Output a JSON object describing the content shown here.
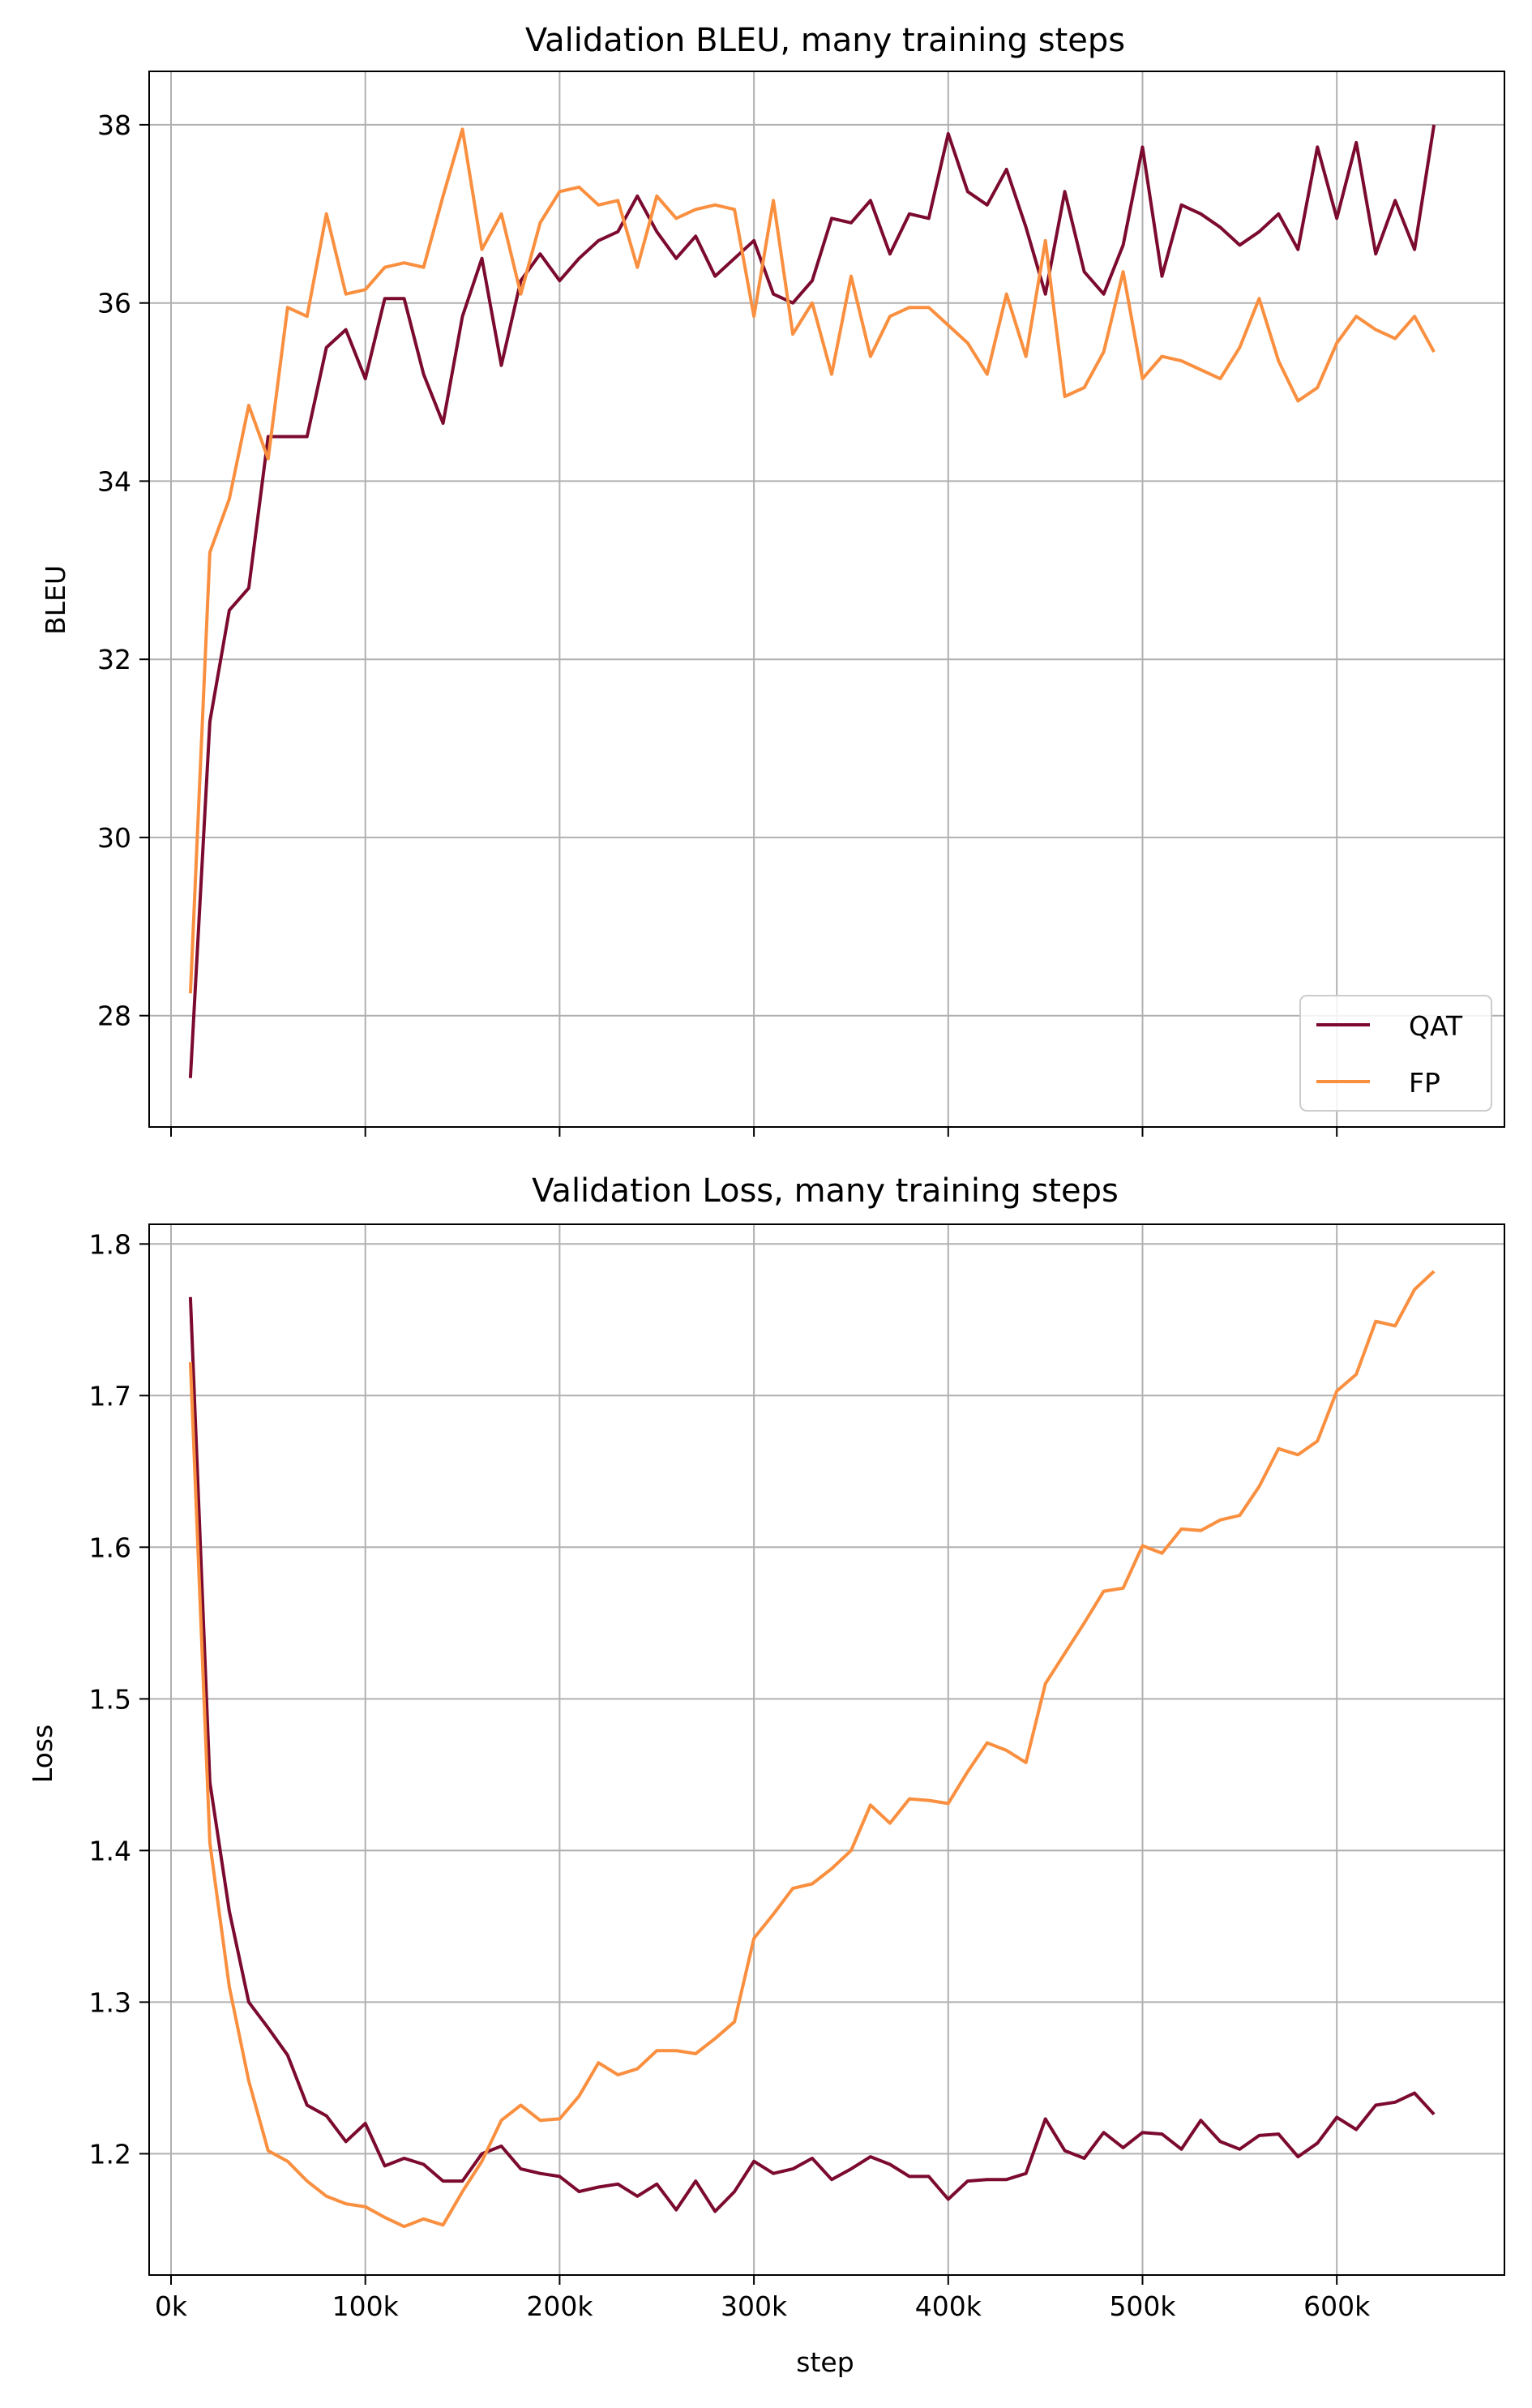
{
  "chart_data": [
    {
      "type": "line",
      "title": "Validation BLEU, many training steps",
      "xlabel": "",
      "ylabel": "BLEU",
      "xlim": [
        -11250,
        686250
      ],
      "ylim": [
        26.75,
        38.6
      ],
      "xticks": [
        0,
        100000,
        200000,
        300000,
        400000,
        500000,
        600000
      ],
      "xtick_labels": [
        "0k",
        "100k",
        "200k",
        "300k",
        "400k",
        "500k",
        "600k"
      ],
      "show_xtick_labels": false,
      "yticks": [
        28,
        30,
        32,
        34,
        36,
        38
      ],
      "ytick_labels": [
        "28",
        "30",
        "32",
        "34",
        "36",
        "38"
      ],
      "grid": true,
      "legend": "lower-right",
      "series": [
        {
          "name": "QAT",
          "color": "#7b0a2e",
          "x": [
            10000,
            20000,
            30000,
            40000,
            50000,
            60000,
            70000,
            80000,
            90000,
            100000,
            110000,
            120000,
            130000,
            140000,
            150000,
            160000,
            170000,
            180000,
            190000,
            200000,
            210000,
            220000,
            230000,
            240000,
            250000,
            260000,
            270000,
            280000,
            290000,
            300000,
            310000,
            320000,
            330000,
            340000,
            350000,
            360000,
            370000,
            380000,
            390000,
            400000,
            410000,
            420000,
            430000,
            440000,
            450000,
            460000,
            470000,
            480000,
            490000,
            500000,
            510000,
            520000,
            530000,
            540000,
            550000,
            560000,
            570000,
            580000,
            590000,
            600000,
            610000,
            620000,
            630000,
            640000,
            650000
          ],
          "y": [
            27.3,
            31.3,
            32.55,
            32.8,
            34.5,
            34.5,
            34.5,
            35.5,
            35.7,
            35.15,
            36.05,
            36.05,
            35.2,
            34.65,
            35.85,
            36.5,
            35.3,
            36.25,
            36.55,
            36.25,
            36.5,
            36.7,
            36.8,
            37.2,
            36.8,
            36.5,
            36.75,
            36.3,
            36.5,
            36.7,
            36.1,
            36.0,
            36.25,
            36.95,
            36.9,
            37.15,
            36.55,
            37.0,
            36.95,
            37.9,
            37.25,
            37.1,
            37.5,
            36.85,
            36.1,
            37.25,
            36.35,
            36.1,
            36.65,
            37.75,
            36.3,
            37.1,
            37.0,
            36.85,
            36.65,
            36.8,
            37.0,
            36.6,
            37.75,
            36.95,
            37.8,
            36.55,
            37.15,
            36.6,
            38.0
          ]
        },
        {
          "name": "FP",
          "color": "#f98f3f",
          "x": [
            10000,
            20000,
            30000,
            40000,
            50000,
            60000,
            70000,
            80000,
            90000,
            100000,
            110000,
            120000,
            130000,
            140000,
            150000,
            160000,
            170000,
            180000,
            190000,
            200000,
            210000,
            220000,
            230000,
            240000,
            250000,
            260000,
            270000,
            280000,
            290000,
            300000,
            310000,
            320000,
            330000,
            340000,
            350000,
            360000,
            370000,
            380000,
            390000,
            400000,
            410000,
            420000,
            430000,
            440000,
            450000,
            460000,
            470000,
            480000,
            490000,
            500000,
            510000,
            520000,
            530000,
            540000,
            550000,
            560000,
            570000,
            580000,
            590000,
            600000,
            610000,
            620000,
            630000,
            640000,
            650000
          ],
          "y": [
            28.25,
            33.2,
            33.8,
            34.85,
            34.25,
            35.95,
            35.85,
            37.0,
            36.1,
            36.15,
            36.4,
            36.45,
            36.4,
            37.2,
            37.95,
            36.6,
            37.0,
            36.1,
            36.9,
            37.25,
            37.3,
            37.1,
            37.15,
            36.4,
            37.2,
            36.95,
            37.05,
            37.1,
            37.05,
            35.85,
            37.15,
            35.65,
            36.0,
            35.2,
            36.3,
            35.4,
            35.85,
            35.95,
            35.95,
            35.75,
            35.55,
            35.2,
            36.1,
            35.4,
            36.7,
            34.95,
            35.05,
            35.45,
            36.35,
            35.15,
            35.4,
            35.35,
            35.25,
            35.15,
            35.5,
            36.05,
            35.35,
            34.9,
            35.05,
            35.55,
            35.85,
            35.7,
            35.6,
            35.85,
            35.45
          ]
        }
      ]
    },
    {
      "type": "line",
      "title": "Validation Loss, many training steps",
      "xlabel": "step",
      "ylabel": "Loss",
      "xlim": [
        -11250,
        686250
      ],
      "ylim": [
        1.12,
        1.813
      ],
      "xticks": [
        0,
        100000,
        200000,
        300000,
        400000,
        500000,
        600000
      ],
      "xtick_labels": [
        "0k",
        "100k",
        "200k",
        "300k",
        "400k",
        "500k",
        "600k"
      ],
      "show_xtick_labels": true,
      "yticks": [
        1.2,
        1.3,
        1.4,
        1.5,
        1.6,
        1.7,
        1.8
      ],
      "ytick_labels": [
        "1.2",
        "1.3",
        "1.4",
        "1.5",
        "1.6",
        "1.7",
        "1.8"
      ],
      "grid": true,
      "legend": "none",
      "series": [
        {
          "name": "QAT",
          "color": "#7b0a2e",
          "x": [
            10000,
            20000,
            30000,
            40000,
            50000,
            60000,
            70000,
            80000,
            90000,
            100000,
            110000,
            120000,
            130000,
            140000,
            150000,
            160000,
            170000,
            180000,
            190000,
            200000,
            210000,
            220000,
            230000,
            240000,
            250000,
            260000,
            270000,
            280000,
            290000,
            300000,
            310000,
            320000,
            330000,
            340000,
            350000,
            360000,
            370000,
            380000,
            390000,
            400000,
            410000,
            420000,
            430000,
            440000,
            450000,
            460000,
            470000,
            480000,
            490000,
            500000,
            510000,
            520000,
            530000,
            540000,
            550000,
            560000,
            570000,
            580000,
            590000,
            600000,
            610000,
            620000,
            630000,
            640000,
            650000
          ],
          "y": [
            1.765,
            1.445,
            1.36,
            1.3,
            1.283,
            1.265,
            1.232,
            1.225,
            1.208,
            1.22,
            1.192,
            1.197,
            1.193,
            1.182,
            1.182,
            1.2,
            1.205,
            1.19,
            1.187,
            1.185,
            1.175,
            1.178,
            1.18,
            1.172,
            1.18,
            1.163,
            1.182,
            1.162,
            1.175,
            1.195,
            1.187,
            1.19,
            1.197,
            1.183,
            1.19,
            1.198,
            1.193,
            1.185,
            1.185,
            1.17,
            1.182,
            1.183,
            1.183,
            1.187,
            1.223,
            1.202,
            1.197,
            1.214,
            1.204,
            1.214,
            1.213,
            1.203,
            1.222,
            1.208,
            1.203,
            1.212,
            1.213,
            1.198,
            1.207,
            1.224,
            1.216,
            1.232,
            1.234,
            1.24,
            1.226
          ]
        },
        {
          "name": "FP",
          "color": "#f98f3f",
          "x": [
            10000,
            20000,
            30000,
            40000,
            50000,
            60000,
            70000,
            80000,
            90000,
            100000,
            110000,
            120000,
            130000,
            140000,
            150000,
            160000,
            170000,
            180000,
            190000,
            200000,
            210000,
            220000,
            230000,
            240000,
            250000,
            260000,
            270000,
            280000,
            290000,
            300000,
            310000,
            320000,
            330000,
            340000,
            350000,
            360000,
            370000,
            380000,
            390000,
            400000,
            410000,
            420000,
            430000,
            440000,
            450000,
            460000,
            470000,
            480000,
            490000,
            500000,
            510000,
            520000,
            530000,
            540000,
            550000,
            560000,
            570000,
            580000,
            590000,
            600000,
            610000,
            620000,
            630000,
            640000,
            650000
          ],
          "y": [
            1.722,
            1.405,
            1.31,
            1.248,
            1.202,
            1.195,
            1.182,
            1.172,
            1.167,
            1.165,
            1.158,
            1.152,
            1.157,
            1.153,
            1.175,
            1.195,
            1.222,
            1.232,
            1.222,
            1.223,
            1.238,
            1.26,
            1.252,
            1.256,
            1.268,
            1.268,
            1.266,
            1.276,
            1.287,
            1.342,
            1.358,
            1.375,
            1.378,
            1.388,
            1.4,
            1.43,
            1.418,
            1.434,
            1.433,
            1.431,
            1.452,
            1.471,
            1.466,
            1.458,
            1.51,
            1.53,
            1.55,
            1.571,
            1.573,
            1.601,
            1.596,
            1.612,
            1.611,
            1.618,
            1.621,
            1.64,
            1.665,
            1.661,
            1.67,
            1.703,
            1.714,
            1.749,
            1.746,
            1.77,
            1.782
          ]
        }
      ]
    }
  ]
}
